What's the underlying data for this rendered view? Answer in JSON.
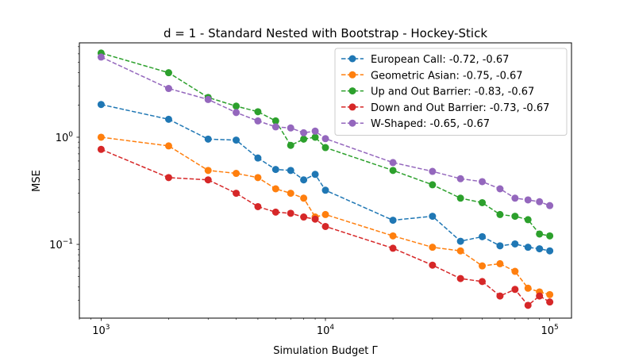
{
  "chart_data": {
    "type": "line",
    "title": "d = 1 - Standard Nested with Bootstrap - Hockey-Stick",
    "xlabel": "Simulation Budget Γ",
    "ylabel": "MSE",
    "xscale": "log",
    "yscale": "log",
    "xlim": [
      800,
      125000
    ],
    "ylim": [
      0.0205,
      7.6
    ],
    "x_ticks": [
      {
        "value": 1000,
        "base": "10",
        "exp": "3"
      },
      {
        "value": 10000,
        "base": "10",
        "exp": "4"
      },
      {
        "value": 100000,
        "base": "10",
        "exp": "5"
      }
    ],
    "y_ticks": [
      {
        "value": 0.1,
        "base": "10",
        "exp": "−1"
      },
      {
        "value": 1,
        "base": "10",
        "exp": "0"
      }
    ],
    "grid": false,
    "legend_position": "top-right",
    "x": [
      1000,
      2000,
      3000,
      4000,
      5000,
      6000,
      7000,
      8000,
      9000,
      10000,
      20000,
      30000,
      40000,
      50000,
      60000,
      70000,
      80000,
      90000,
      100000
    ],
    "series": [
      {
        "name": "European Call: -0.72, -0.67",
        "color": "#1f77b4",
        "values": [
          2.02,
          1.47,
          0.96,
          0.94,
          0.64,
          0.5,
          0.49,
          0.4,
          0.45,
          0.32,
          0.168,
          0.183,
          0.107,
          0.118,
          0.097,
          0.101,
          0.094,
          0.091,
          0.087
        ]
      },
      {
        "name": "Geometric Asian: -0.75, -0.67",
        "color": "#ff7f0e",
        "values": [
          1.0,
          0.83,
          0.49,
          0.46,
          0.42,
          0.33,
          0.3,
          0.27,
          0.18,
          0.19,
          0.12,
          0.094,
          0.087,
          0.063,
          0.066,
          0.056,
          0.039,
          0.036,
          0.034
        ]
      },
      {
        "name": "Up and Out Barrier: -0.83, -0.67",
        "color": "#2ca02c",
        "values": [
          6.1,
          4.0,
          2.35,
          1.95,
          1.73,
          1.42,
          0.84,
          0.96,
          1.0,
          0.8,
          0.49,
          0.36,
          0.27,
          0.245,
          0.19,
          0.183,
          0.17,
          0.125,
          0.12
        ]
      },
      {
        "name": "Down and Out Barrier: -0.73, -0.67",
        "color": "#d62728",
        "values": [
          0.77,
          0.42,
          0.4,
          0.3,
          0.225,
          0.2,
          0.195,
          0.18,
          0.172,
          0.147,
          0.092,
          0.064,
          0.048,
          0.045,
          0.033,
          0.038,
          0.027,
          0.033,
          0.029
        ]
      },
      {
        "name": "W-Shaped: -0.65, -0.67",
        "color": "#9467bd",
        "values": [
          5.6,
          2.85,
          2.25,
          1.7,
          1.42,
          1.25,
          1.22,
          1.1,
          1.14,
          0.97,
          0.58,
          0.48,
          0.41,
          0.385,
          0.33,
          0.27,
          0.26,
          0.25,
          0.23
        ]
      }
    ]
  }
}
